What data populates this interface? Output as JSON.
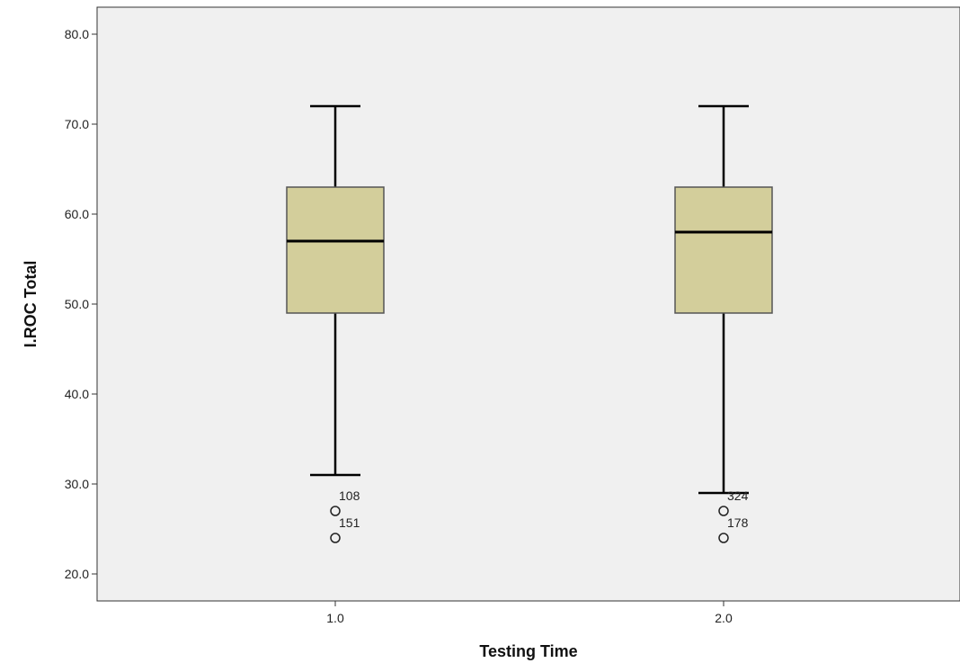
{
  "chart_data": {
    "type": "boxplot",
    "xlabel": "Testing Time",
    "ylabel": "I.ROC Total",
    "ylim": [
      17,
      83
    ],
    "yticks": [
      20,
      30,
      40,
      50,
      60,
      70,
      80
    ],
    "ytick_labels": [
      "20.0",
      "30.0",
      "40.0",
      "50.0",
      "60.0",
      "70.0",
      "80.0"
    ],
    "grid": false,
    "box_color": "#d3ce9b",
    "plot_background": "#f0f0f0",
    "categories": [
      "1.0",
      "2.0"
    ],
    "boxes": [
      {
        "category": "1.0",
        "whisker_low": 31,
        "q1": 49,
        "median": 57,
        "q3": 63,
        "whisker_high": 72,
        "outliers": [
          {
            "value": 27,
            "label": "108"
          },
          {
            "value": 24,
            "label": "151"
          }
        ]
      },
      {
        "category": "2.0",
        "whisker_low": 29,
        "q1": 49,
        "median": 58,
        "q3": 63,
        "whisker_high": 72,
        "outliers": [
          {
            "value": 27,
            "label": "324"
          },
          {
            "value": 24,
            "label": "178"
          }
        ]
      }
    ]
  }
}
